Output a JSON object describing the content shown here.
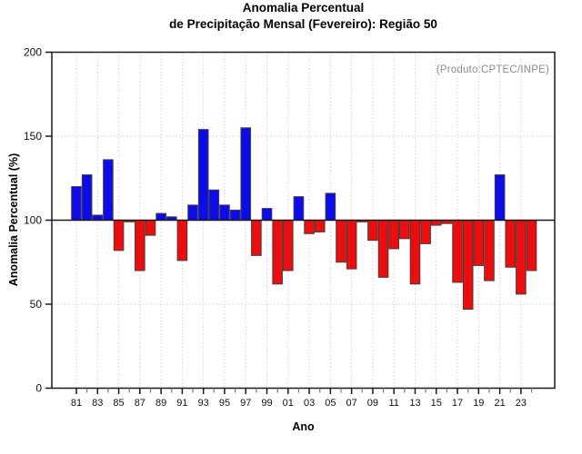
{
  "title_line1": "Anomalia Percentual",
  "title_line2": "de Precipitação Mensal (Fevereiro): Região 50",
  "annotation": "(Produto:CPTEC/INPE)",
  "x_axis_title": "Ano",
  "y_axis_title": "Anomalia Percentual (%)",
  "chart_data": {
    "type": "bar",
    "title": "Anomalia Percentual de Precipitação Mensal (Fevereiro): Região 50",
    "xlabel": "Ano",
    "ylabel": "Anomalia Percentual (%)",
    "ylim": [
      0,
      200
    ],
    "yticks": [
      0,
      50,
      100,
      150,
      200
    ],
    "baseline": 100,
    "grid": "dotted",
    "legend": "none",
    "annotation": "(Produto:CPTEC/INPE)",
    "categories": [
      1981,
      1982,
      1983,
      1984,
      1985,
      1986,
      1987,
      1988,
      1989,
      1990,
      1991,
      1992,
      1993,
      1994,
      1995,
      1996,
      1997,
      1998,
      1999,
      2000,
      2001,
      2002,
      2003,
      2004,
      2005,
      2006,
      2007,
      2008,
      2009,
      2010,
      2011,
      2012,
      2013,
      2014,
      2015,
      2016,
      2017,
      2018,
      2019,
      2020,
      2021,
      2022,
      2023,
      2024
    ],
    "values": [
      120,
      127,
      103,
      136,
      82,
      99,
      70,
      91,
      104,
      102,
      76,
      109,
      154,
      118,
      109,
      106,
      155,
      79,
      107,
      62,
      70,
      114,
      92,
      93,
      116,
      75,
      71,
      99,
      88,
      66,
      83,
      89,
      62,
      86,
      97,
      98,
      63,
      47,
      73,
      64,
      127,
      72,
      56,
      70
    ],
    "x_tick_labels": [
      "81",
      "83",
      "85",
      "87",
      "89",
      "91",
      "93",
      "95",
      "97",
      "99",
      "01",
      "03",
      "05",
      "07",
      "09",
      "11",
      "13",
      "15",
      "17",
      "19",
      "21",
      "23"
    ],
    "colors": {
      "above_baseline": "#0b0bee",
      "below_baseline": "#ee0c0c",
      "bar_border": "#404040",
      "grid": "#c4c4c4",
      "axis": "#1a1a1a",
      "minor_tick": "#777777",
      "annotation_text": "#8c8c8c"
    }
  }
}
